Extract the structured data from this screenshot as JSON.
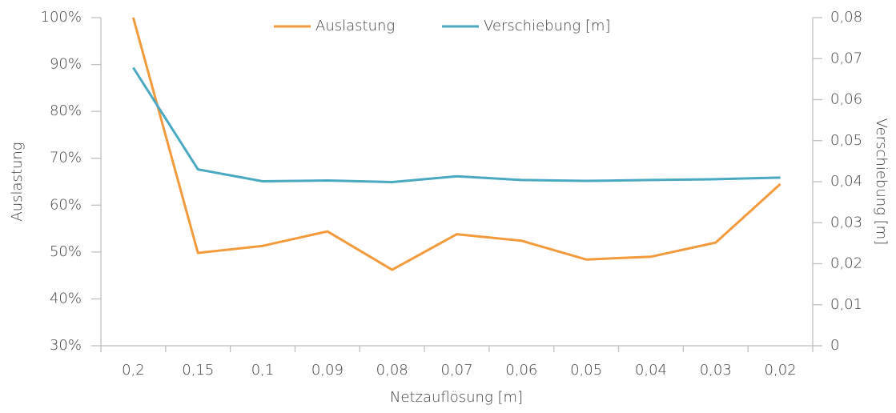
{
  "chart_data": {
    "type": "line",
    "x_label": "Netzauflösung [m]",
    "y_label": "Auslastung",
    "y2_label": "Verschiebung [m]",
    "categories": [
      "0,2",
      "0,15",
      "0,1",
      "0,09",
      "0,08",
      "0,07",
      "0,06",
      "0,05",
      "0,04",
      "0,03",
      "0,02"
    ],
    "series": [
      {
        "name": "Auslastung",
        "color": "#f39a3c",
        "values": [
          100,
          49.8,
          51.3,
          54.4,
          46.2,
          53.8,
          52.4,
          48.4,
          49,
          52,
          64.5
        ]
      },
      {
        "name": "Verschiebung [m]",
        "color": "#4aa9c2",
        "axis": "y2",
        "values": [
          0.0678,
          0.043,
          0.0401,
          0.0403,
          0.0399,
          0.0413,
          0.0404,
          0.0402,
          0.0404,
          0.0406,
          0.041
        ]
      }
    ],
    "ylim": [
      30,
      100
    ],
    "yticks": [
      {
        "value": 30,
        "label": "30%"
      },
      {
        "value": 40,
        "label": "40%"
      },
      {
        "value": 50,
        "label": "50%"
      },
      {
        "value": 60,
        "label": "60%"
      },
      {
        "value": 70,
        "label": "70%"
      },
      {
        "value": 80,
        "label": "80%"
      },
      {
        "value": 90,
        "label": "90%"
      },
      {
        "value": 100,
        "label": "100%"
      }
    ],
    "y2lim": [
      0,
      0.08
    ],
    "y2ticks": [
      0,
      {
        "value": 0.01,
        "label": "0,01"
      },
      {
        "value": 0.02,
        "label": "0,02"
      },
      {
        "value": 0.03,
        "label": "0,03"
      },
      {
        "value": 0.04,
        "label": "0,04"
      },
      {
        "value": 0.05,
        "label": "0,05"
      },
      {
        "value": 0.06,
        "label": "0,06"
      },
      {
        "value": 0.07,
        "label": "0,07"
      },
      {
        "value": 0.08,
        "label": "0,08"
      }
    ],
    "legend": "top",
    "grid": false
  }
}
